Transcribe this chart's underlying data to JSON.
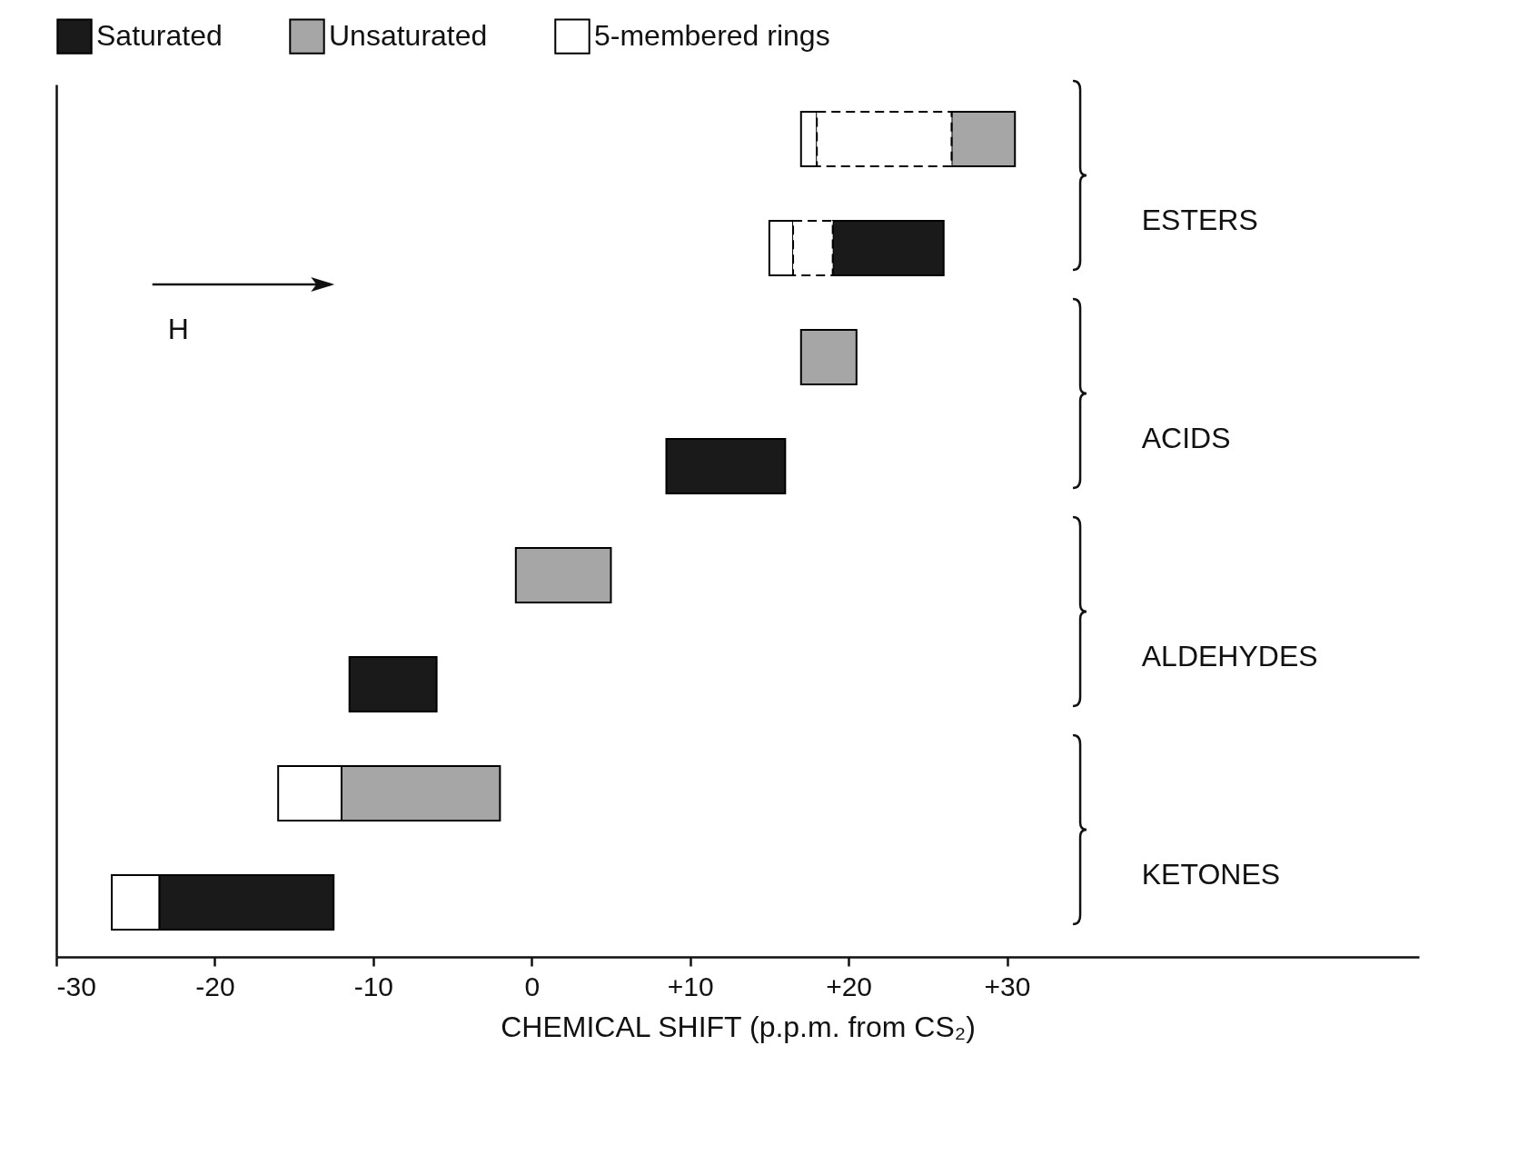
{
  "chart_data": {
    "type": "bar",
    "orientation": "horizontal",
    "categories": [
      null,
      null,
      null,
      null,
      null,
      null,
      null,
      null
    ],
    "xlabel": "CHEMICAL SHIFT (p.p.m. from CS₂)",
    "xlim": [
      -30,
      56
    ],
    "xticks": [
      -30,
      -20,
      -10,
      0,
      {
        "value": 10,
        "label": "+10"
      },
      {
        "value": 20,
        "label": "+20"
      },
      {
        "value": 30,
        "label": "+30"
      }
    ],
    "series": [
      {
        "name": "Saturated",
        "color": "#1a1a1a",
        "base": [
          null,
          19,
          null,
          8.5,
          null,
          -11.5,
          null,
          -23.5
        ],
        "values": [
          null,
          7,
          null,
          7.5,
          null,
          5.5,
          null,
          11
        ]
      },
      {
        "name": "Unsaturated",
        "color": "#a6a6a6",
        "base": [
          26.5,
          null,
          17,
          null,
          -1,
          null,
          -12,
          null
        ],
        "values": [
          4,
          null,
          3.5,
          null,
          6,
          null,
          10,
          null
        ]
      },
      {
        "name": "5-membered rings",
        "color": "#ffffff",
        "base": [
          17,
          15,
          null,
          null,
          null,
          null,
          -16,
          -26.5
        ],
        "values": [
          1,
          1.5,
          null,
          null,
          null,
          null,
          4,
          3
        ]
      },
      {
        "color": "#ffffff",
        "line_style": "dashed",
        "base": [
          18,
          16.5,
          null,
          null,
          null,
          null,
          null,
          null
        ],
        "values": [
          8.5,
          2.5,
          null,
          null,
          null,
          null,
          null,
          null
        ]
      }
    ],
    "annotations": [
      "ESTERS",
      "ACIDS",
      "ALDEHYDES",
      "KETONES",
      "H"
    ],
    "legend": "top",
    "grid": false,
    "tick_labels": "x"
  }
}
